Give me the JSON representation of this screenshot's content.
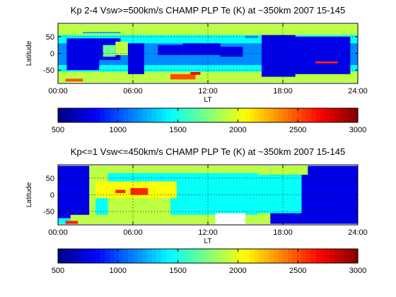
{
  "figure": {
    "background": "#ffffff"
  },
  "chart_data": [
    {
      "type": "heatmap",
      "title": "Kp 2-4 Vsw>=500km/s CHAMP PLP Te (K) at ~350km 2007 15-145",
      "xlabel": "LT",
      "ylabel": "Latitude",
      "xlim": [
        0,
        24
      ],
      "ylim": [
        -90,
        90
      ],
      "x_ticks": [
        0,
        6,
        12,
        18,
        24
      ],
      "x_tick_labels": [
        "00:00",
        "06:00",
        "12:00",
        "18:00",
        "24:00"
      ],
      "y_ticks": [
        -50,
        0,
        50
      ],
      "y_tick_labels": [
        "-50",
        "0",
        "50"
      ],
      "grid": "dotted",
      "colorbar": {
        "range": [
          500,
          3000
        ],
        "ticks": [
          500,
          1000,
          1500,
          2000,
          2500,
          3000
        ],
        "tick_labels": [
          "500",
          "1000",
          "1500",
          "2000",
          "2500",
          "3000"
        ],
        "colormap": "jet"
      },
      "cells": [
        {
          "lt": [
            0,
            24
          ],
          "lat": [
            -87,
            87
          ],
          "te": 1150
        },
        {
          "lt": [
            0,
            24
          ],
          "lat": [
            55,
            87
          ],
          "te": 1900
        },
        {
          "lt": [
            0,
            24
          ],
          "lat": [
            -87,
            -55
          ],
          "te": 1900
        },
        {
          "lt": [
            0,
            24
          ],
          "lat": [
            30,
            55
          ],
          "te": 1450
        },
        {
          "lt": [
            0,
            24
          ],
          "lat": [
            -55,
            -35
          ],
          "te": 1450
        },
        {
          "lt": [
            0.7,
            3.3
          ],
          "lat": [
            -50,
            45
          ],
          "te": 750
        },
        {
          "lt": [
            3.3,
            5.0
          ],
          "lat": [
            -20,
            45
          ],
          "te": 750
        },
        {
          "lt": [
            3.6,
            4.6
          ],
          "lat": [
            -10,
            25
          ],
          "te": 1700
        },
        {
          "lt": [
            4.6,
            5.6
          ],
          "lat": [
            -5,
            35
          ],
          "te": 1900
        },
        {
          "lt": [
            5.6,
            6.9
          ],
          "lat": [
            -62,
            30
          ],
          "te": 750
        },
        {
          "lt": [
            8.0,
            10.0
          ],
          "lat": [
            -5,
            25
          ],
          "te": 750
        },
        {
          "lt": [
            10.0,
            13.0
          ],
          "lat": [
            -5,
            30
          ],
          "te": 750
        },
        {
          "lt": [
            13.0,
            14.8
          ],
          "lat": [
            -10,
            20
          ],
          "te": 750
        },
        {
          "lt": [
            16.6,
            23.4
          ],
          "lat": [
            -62,
            50
          ],
          "te": 750
        },
        {
          "lt": [
            16.3,
            19.0
          ],
          "lat": [
            -70,
            55
          ],
          "te": 750
        },
        {
          "lt": [
            9.0,
            11.0
          ],
          "lat": [
            -78,
            -62
          ],
          "te": 2500
        },
        {
          "lt": [
            10.6,
            11.4
          ],
          "lat": [
            -64,
            -56
          ],
          "te": 2700
        },
        {
          "lt": [
            0.6,
            2.0
          ],
          "lat": [
            -84,
            -76
          ],
          "te": 2500
        },
        {
          "lt": [
            20.6,
            22.4
          ],
          "lat": [
            -30,
            -24
          ],
          "te": 2600
        },
        {
          "lt": [
            2.0,
            5.0
          ],
          "lat": [
            60,
            64
          ],
          "te": 1200
        },
        {
          "lt": [
            15.0,
            16.0
          ],
          "lat": [
            45,
            53
          ],
          "te": 1200
        }
      ]
    },
    {
      "type": "heatmap",
      "title": "Kp<=1 Vsw<=450km/s CHAMP PLP Te (K) at ~350km 2007 15-145",
      "xlabel": "LT",
      "ylabel": "Latitude",
      "xlim": [
        0,
        24
      ],
      "ylim": [
        -90,
        90
      ],
      "x_ticks": [
        0,
        6,
        12,
        18,
        24
      ],
      "x_tick_labels": [
        "00:00",
        "06:00",
        "12:00",
        "18:00",
        "24:00"
      ],
      "y_ticks": [
        -50,
        0,
        50
      ],
      "y_tick_labels": [
        "-50",
        "0",
        "50"
      ],
      "grid": "dotted",
      "colorbar": {
        "range": [
          500,
          3000
        ],
        "ticks": [
          500,
          1000,
          1500,
          2000,
          2500,
          3000
        ],
        "tick_labels": [
          "500",
          "1000",
          "1500",
          "2000",
          "2500",
          "3000"
        ],
        "colormap": "jet"
      },
      "cells": [
        {
          "lt": [
            0,
            24
          ],
          "lat": [
            -87,
            87
          ],
          "te": 750
        },
        {
          "lt": [
            2.5,
            17.0
          ],
          "lat": [
            -87,
            87
          ],
          "te": 1900
        },
        {
          "lt": [
            17.0,
            20.0
          ],
          "lat": [
            60,
            87
          ],
          "te": 1900
        },
        {
          "lt": [
            4.0,
            16.0
          ],
          "lat": [
            40,
            65
          ],
          "te": 1450
        },
        {
          "lt": [
            9.0,
            16.0
          ],
          "lat": [
            -60,
            40
          ],
          "te": 1450
        },
        {
          "lt": [
            16.0,
            19.5
          ],
          "lat": [
            -55,
            60
          ],
          "te": 1450
        },
        {
          "lt": [
            3.0,
            4.0
          ],
          "lat": [
            -60,
            10
          ],
          "te": 1450
        },
        {
          "lt": [
            1.0,
            4.0
          ],
          "lat": [
            -87,
            -60
          ],
          "te": 1900
        },
        {
          "lt": [
            0,
            1.0
          ],
          "lat": [
            -87,
            -70
          ],
          "te": 1450
        },
        {
          "lt": [
            3.0,
            9.5
          ],
          "lat": [
            -10,
            40
          ],
          "te": 2050
        },
        {
          "lt": [
            5.8,
            7.2
          ],
          "lat": [
            0,
            20
          ],
          "te": 2600
        },
        {
          "lt": [
            4.6,
            5.4
          ],
          "lat": [
            5,
            15
          ],
          "te": 2600
        },
        {
          "lt": [
            0.6,
            1.6
          ],
          "lat": [
            -87,
            -78
          ],
          "te": 2600
        },
        {
          "lt": [
            12.6,
            15.0
          ],
          "lat": [
            -90,
            -55
          ],
          "te": null
        }
      ]
    }
  ]
}
